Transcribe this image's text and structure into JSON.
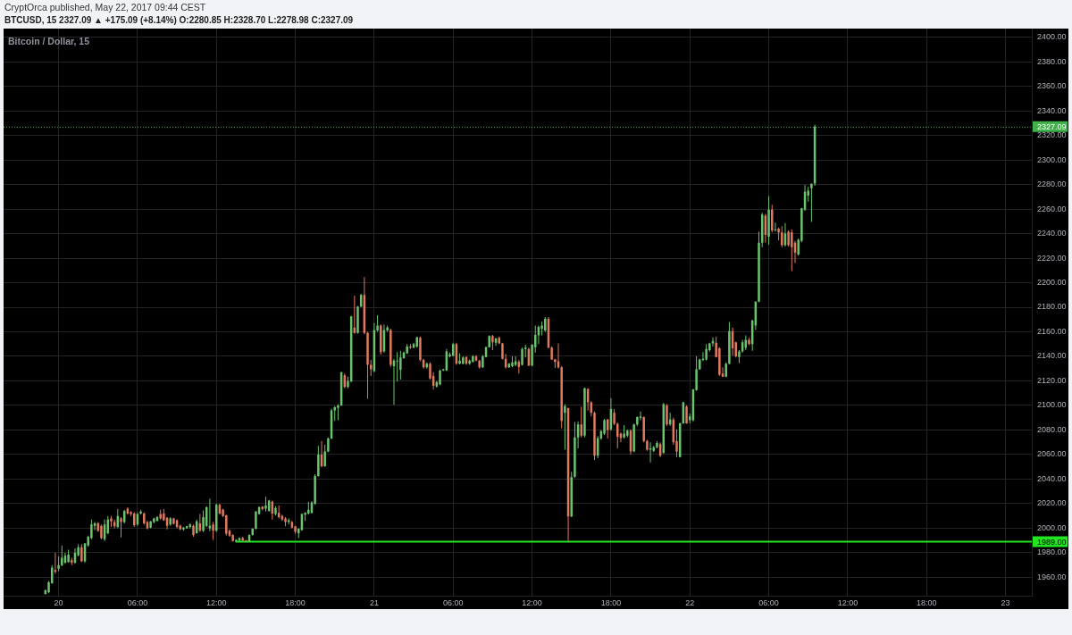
{
  "chart_data": {
    "type": "candlestick",
    "title": "Bitcoin / Dollar, 15",
    "subtitle": "BTCUSD, 15 2327.09 ▲ +175.09 (+8.14%) O:2280.85 H:2328.70 L:2278.98 C:2327.09",
    "annotations": [
      "CryptOrca published, May 22, 2017 09:44 CEST"
    ],
    "x": [
      "2017-05-19T23:00",
      "2017-05-19T23:15",
      "2017-05-19T23:30",
      "2017-05-19T23:45",
      "2017-05-20T00:00",
      "2017-05-20T00:15",
      "2017-05-20T00:30",
      "2017-05-20T00:45",
      "2017-05-20T01:00",
      "2017-05-20T01:15",
      "2017-05-20T01:30",
      "2017-05-20T01:45",
      "2017-05-20T02:00",
      "2017-05-20T02:15",
      "2017-05-20T02:30",
      "2017-05-20T02:45",
      "2017-05-20T03:00",
      "2017-05-20T03:15",
      "2017-05-20T03:30",
      "2017-05-20T03:45",
      "2017-05-20T04:00",
      "2017-05-20T04:15",
      "2017-05-20T04:30",
      "2017-05-20T04:45",
      "2017-05-20T05:00",
      "2017-05-20T05:15",
      "2017-05-20T05:30",
      "2017-05-20T05:45",
      "2017-05-20T06:00",
      "2017-05-20T06:15",
      "2017-05-20T06:30",
      "2017-05-20T06:45",
      "2017-05-20T07:00",
      "2017-05-20T07:15",
      "2017-05-20T07:30",
      "2017-05-20T07:45",
      "2017-05-20T08:00",
      "2017-05-20T08:15",
      "2017-05-20T08:30",
      "2017-05-20T08:45",
      "2017-05-20T09:00",
      "2017-05-20T09:15",
      "2017-05-20T09:30",
      "2017-05-20T09:45",
      "2017-05-20T10:00",
      "2017-05-20T10:15",
      "2017-05-20T10:30",
      "2017-05-20T10:45",
      "2017-05-20T11:00",
      "2017-05-20T11:15",
      "2017-05-20T11:30",
      "2017-05-20T11:45",
      "2017-05-20T12:00",
      "2017-05-20T12:15",
      "2017-05-20T12:30",
      "2017-05-20T12:45",
      "2017-05-20T13:00",
      "2017-05-20T13:15",
      "2017-05-20T13:30",
      "2017-05-20T13:45",
      "2017-05-20T14:00",
      "2017-05-20T14:15",
      "2017-05-20T14:30",
      "2017-05-20T14:45",
      "2017-05-20T15:00",
      "2017-05-20T15:15",
      "2017-05-20T15:30",
      "2017-05-20T15:45",
      "2017-05-20T16:00",
      "2017-05-20T16:15",
      "2017-05-20T16:30",
      "2017-05-20T16:45",
      "2017-05-20T17:00",
      "2017-05-20T17:15",
      "2017-05-20T17:30",
      "2017-05-20T17:45",
      "2017-05-20T18:00",
      "2017-05-20T18:15",
      "2017-05-20T18:30",
      "2017-05-20T18:45",
      "2017-05-20T19:00",
      "2017-05-20T19:15",
      "2017-05-20T19:30",
      "2017-05-20T19:45",
      "2017-05-20T20:00",
      "2017-05-20T20:15",
      "2017-05-20T20:30",
      "2017-05-20T20:45",
      "2017-05-20T21:00",
      "2017-05-20T21:15",
      "2017-05-20T21:30",
      "2017-05-20T21:45",
      "2017-05-20T22:00",
      "2017-05-20T22:15",
      "2017-05-20T22:30",
      "2017-05-20T22:45",
      "2017-05-20T23:00",
      "2017-05-20T23:15",
      "2017-05-20T23:30",
      "2017-05-20T23:45",
      "2017-05-21T00:00",
      "2017-05-21T00:15",
      "2017-05-21T00:30",
      "2017-05-21T00:45",
      "2017-05-21T01:00",
      "2017-05-21T01:15",
      "2017-05-21T01:30",
      "2017-05-21T01:45",
      "2017-05-21T02:00",
      "2017-05-21T02:15",
      "2017-05-21T02:30",
      "2017-05-21T02:45",
      "2017-05-21T03:00",
      "2017-05-21T03:15",
      "2017-05-21T03:30",
      "2017-05-21T03:45",
      "2017-05-21T04:00",
      "2017-05-21T04:15",
      "2017-05-21T04:30",
      "2017-05-21T04:45",
      "2017-05-21T05:00",
      "2017-05-21T05:15",
      "2017-05-21T05:30",
      "2017-05-21T05:45",
      "2017-05-21T06:00",
      "2017-05-21T06:15",
      "2017-05-21T06:30",
      "2017-05-21T06:45",
      "2017-05-21T07:00",
      "2017-05-21T07:15",
      "2017-05-21T07:30",
      "2017-05-21T07:45",
      "2017-05-21T08:00",
      "2017-05-21T08:15",
      "2017-05-21T08:30",
      "2017-05-21T08:45",
      "2017-05-21T09:00",
      "2017-05-21T09:15",
      "2017-05-21T09:30",
      "2017-05-21T09:45",
      "2017-05-21T10:00",
      "2017-05-21T10:15",
      "2017-05-21T10:30",
      "2017-05-21T10:45",
      "2017-05-21T11:00",
      "2017-05-21T11:15",
      "2017-05-21T11:30",
      "2017-05-21T11:45",
      "2017-05-21T12:00",
      "2017-05-21T12:15",
      "2017-05-21T12:30",
      "2017-05-21T12:45",
      "2017-05-21T13:00",
      "2017-05-21T13:15",
      "2017-05-21T13:30",
      "2017-05-21T13:45",
      "2017-05-21T14:00",
      "2017-05-21T14:15",
      "2017-05-21T14:30",
      "2017-05-21T14:45",
      "2017-05-21T15:00",
      "2017-05-21T15:15",
      "2017-05-21T15:30",
      "2017-05-21T15:45",
      "2017-05-21T16:00",
      "2017-05-21T16:15",
      "2017-05-21T16:30",
      "2017-05-21T16:45",
      "2017-05-21T17:00",
      "2017-05-21T17:15",
      "2017-05-21T17:30",
      "2017-05-21T17:45",
      "2017-05-21T18:00",
      "2017-05-21T18:15",
      "2017-05-21T18:30",
      "2017-05-21T18:45",
      "2017-05-21T19:00",
      "2017-05-21T19:15",
      "2017-05-21T19:30",
      "2017-05-21T19:45",
      "2017-05-21T20:00",
      "2017-05-21T20:15",
      "2017-05-21T20:30",
      "2017-05-21T20:45",
      "2017-05-21T21:00",
      "2017-05-21T21:15",
      "2017-05-21T21:30",
      "2017-05-21T21:45",
      "2017-05-21T22:00",
      "2017-05-21T22:15",
      "2017-05-21T22:30",
      "2017-05-21T22:45",
      "2017-05-21T23:00",
      "2017-05-21T23:15",
      "2017-05-21T23:30",
      "2017-05-21T23:45",
      "2017-05-22T00:00",
      "2017-05-22T00:15",
      "2017-05-22T00:30",
      "2017-05-22T00:45",
      "2017-05-22T01:00",
      "2017-05-22T01:15",
      "2017-05-22T01:30",
      "2017-05-22T01:45",
      "2017-05-22T02:00",
      "2017-05-22T02:15",
      "2017-05-22T02:30",
      "2017-05-22T02:45",
      "2017-05-22T03:00",
      "2017-05-22T03:15",
      "2017-05-22T03:30",
      "2017-05-22T03:45",
      "2017-05-22T04:00",
      "2017-05-22T04:15",
      "2017-05-22T04:30",
      "2017-05-22T04:45",
      "2017-05-22T05:00",
      "2017-05-22T05:15",
      "2017-05-22T05:30",
      "2017-05-22T05:45",
      "2017-05-22T06:00",
      "2017-05-22T06:15",
      "2017-05-22T06:30",
      "2017-05-22T06:45",
      "2017-05-22T07:00",
      "2017-05-22T07:15",
      "2017-05-22T07:30",
      "2017-05-22T07:45",
      "2017-05-22T08:00",
      "2017-05-22T08:15",
      "2017-05-22T08:30",
      "2017-05-22T08:45",
      "2017-05-22T09:00",
      "2017-05-22T09:15",
      "2017-05-22T09:30"
    ],
    "ohlc": [
      [
        1946.5,
        1950,
        1946,
        1949.5
      ],
      [
        1948,
        1957,
        1947,
        1956
      ],
      [
        1955,
        1970,
        1955,
        1968
      ],
      [
        1966,
        1980,
        1963,
        1964.5
      ],
      [
        1967,
        1977,
        1965,
        1970
      ],
      [
        1970,
        1986,
        1969,
        1976
      ],
      [
        1972,
        1980,
        1971,
        1977.5
      ],
      [
        1972.5,
        1982.5,
        1972,
        1978.5
      ],
      [
        1974,
        1976,
        1970,
        1972
      ],
      [
        1972,
        1983.5,
        1971,
        1980
      ],
      [
        1978,
        1987,
        1977,
        1984.5
      ],
      [
        1984.5,
        1987,
        1972.5,
        1973
      ],
      [
        1973,
        1988,
        1972,
        1987.5
      ],
      [
        1986,
        1994,
        1985,
        1993
      ],
      [
        1992,
        2007,
        1991,
        2003
      ],
      [
        2002,
        2005,
        1998.5,
        2004
      ],
      [
        2004,
        2005,
        1997,
        1998
      ],
      [
        2002,
        2003,
        1991,
        1992
      ],
      [
        1991,
        2007,
        1989.5,
        2003
      ],
      [
        1996,
        2010,
        1995,
        2007
      ],
      [
        2008,
        2010,
        2001,
        2005.5
      ],
      [
        2005,
        2007,
        2000,
        2001.5
      ],
      [
        2001,
        2015.5,
        2000,
        2010
      ],
      [
        2008,
        2009,
        1992.5,
        2005
      ],
      [
        2005,
        2015,
        2004,
        2014
      ],
      [
        2016,
        2017,
        2011,
        2012
      ],
      [
        2013,
        2014,
        2010,
        2011.5
      ],
      [
        2012,
        2013,
        2001,
        2002.5
      ],
      [
        2003,
        2012.5,
        2002,
        2011.5
      ],
      [
        2012,
        2015,
        2011,
        2013.5
      ],
      [
        2012,
        2013,
        2003,
        2004
      ],
      [
        2005,
        2006,
        1999,
        2000
      ],
      [
        2000.5,
        2006,
        2000,
        2005.5
      ],
      [
        2005,
        2008.5,
        2004,
        2008
      ],
      [
        2006,
        2010,
        2005.5,
        2009
      ],
      [
        2011.5,
        2015,
        2007,
        2008
      ],
      [
        2012,
        2015.5,
        2006,
        2006.5
      ],
      [
        2008.5,
        2009,
        1999,
        2002
      ],
      [
        2003,
        2009,
        2002,
        2008
      ],
      [
        2008,
        2008.5,
        2003,
        2003.5
      ],
      [
        2006.5,
        2007,
        2000,
        2001
      ],
      [
        2002,
        2003,
        1998.5,
        1999
      ],
      [
        1999,
        2001,
        1998,
        2000.5
      ],
      [
        2000,
        2002,
        1999.5,
        2001.5
      ],
      [
        2001,
        2004,
        2000,
        2003
      ],
      [
        2002,
        2003,
        1993,
        1994.5
      ],
      [
        1996,
        2007,
        1995.5,
        2005.5
      ],
      [
        2004,
        2011.5,
        1997,
        1998
      ],
      [
        1998,
        2014.5,
        1997,
        2009
      ],
      [
        2002,
        2018,
        2001,
        2017
      ],
      [
        2000,
        2024,
        1997.5,
        2002
      ],
      [
        2003,
        2005,
        1990.5,
        1998
      ],
      [
        1998,
        2020,
        1997,
        2019
      ],
      [
        2019,
        2020,
        2011,
        2012
      ],
      [
        2015,
        2016,
        2009,
        2010
      ],
      [
        2010.5,
        2011,
        1994,
        1995.5
      ],
      [
        1998,
        1999,
        1993,
        1994
      ],
      [
        1994.5,
        1995,
        1989,
        1989.5
      ],
      [
        1989.5,
        1991,
        1989,
        1990.5
      ],
      [
        1990,
        1992.5,
        1989.5,
        1992
      ],
      [
        1992,
        1993,
        1989.5,
        1990
      ],
      [
        1990,
        1990.5,
        1989,
        1989.5
      ],
      [
        1989,
        1995,
        1989,
        1994.5
      ],
      [
        1994.5,
        2000,
        1994,
        1999.5
      ],
      [
        1999.5,
        2014,
        1999,
        2013.5
      ],
      [
        2011.5,
        2018,
        2011,
        2017
      ],
      [
        2017.5,
        2018,
        2014.5,
        2015.5
      ],
      [
        2016,
        2025.5,
        2013.5,
        2018.5
      ],
      [
        2014,
        2023,
        2013.5,
        2022.5
      ],
      [
        2021.5,
        2022.5,
        2007,
        2012
      ],
      [
        2011.5,
        2018,
        2010.5,
        2016.5
      ],
      [
        2012.5,
        2018.5,
        2008,
        2009
      ],
      [
        2010,
        2011,
        2006,
        2007
      ],
      [
        2008,
        2009,
        2001.5,
        2005
      ],
      [
        2005,
        2008,
        2003,
        2006.5
      ],
      [
        2005,
        2006,
        2000,
        2000.5
      ],
      [
        2001.5,
        2002,
        1995.5,
        1997
      ],
      [
        1996,
        2000,
        1992,
        1999.5
      ],
      [
        1998.5,
        2012,
        1998,
        2011.5
      ],
      [
        2011,
        2013,
        2006,
        2012.5
      ],
      [
        2012,
        2021.5,
        2011,
        2015
      ],
      [
        2012.5,
        2022,
        2012,
        2021
      ],
      [
        2020,
        2044,
        2019,
        2042.5
      ],
      [
        2042.5,
        2067,
        2042,
        2060
      ],
      [
        2060,
        2071,
        2049.5,
        2050.5
      ],
      [
        2050.5,
        2068,
        2050,
        2062.5
      ],
      [
        2062.5,
        2074,
        2062,
        2073
      ],
      [
        2073,
        2097.5,
        2072.5,
        2096
      ],
      [
        2096,
        2099.5,
        2087.5,
        2098.5
      ],
      [
        2098,
        2101,
        2088,
        2100
      ],
      [
        2100,
        2127.5,
        2099.5,
        2127
      ],
      [
        2124.5,
        2126,
        2114,
        2115
      ],
      [
        2115,
        2123.5,
        2114,
        2120
      ],
      [
        2119.5,
        2173,
        2119,
        2172.5
      ],
      [
        2163.5,
        2189.5,
        2158.5,
        2159
      ],
      [
        2159,
        2181,
        2158.5,
        2180.5
      ],
      [
        2180.5,
        2191,
        2180,
        2190
      ],
      [
        2190,
        2204.5,
        2158,
        2159
      ],
      [
        2159,
        2160,
        2105.5,
        2133
      ],
      [
        2133,
        2137,
        2124,
        2129.5
      ],
      [
        2128,
        2167,
        2127,
        2161.5
      ],
      [
        2161,
        2173.5,
        2160,
        2165
      ],
      [
        2165,
        2166,
        2141.5,
        2143.5
      ],
      [
        2144,
        2166,
        2143,
        2161.5
      ],
      [
        2161,
        2165,
        2160,
        2163.5
      ],
      [
        2161.5,
        2162.5,
        2131.5,
        2133
      ],
      [
        2132,
        2138,
        2100.5,
        2136.5
      ],
      [
        2136,
        2143.5,
        2119.5,
        2136.5
      ],
      [
        2129,
        2144.5,
        2121,
        2139
      ],
      [
        2138.5,
        2144,
        2138,
        2143
      ],
      [
        2142.5,
        2150,
        2142,
        2148
      ],
      [
        2148,
        2150,
        2146,
        2147
      ],
      [
        2147,
        2151,
        2146.5,
        2150
      ],
      [
        2148,
        2156,
        2147,
        2155.5
      ],
      [
        2155,
        2156,
        2136,
        2137
      ],
      [
        2137,
        2138,
        2130,
        2131
      ],
      [
        2131,
        2135,
        2130,
        2134
      ],
      [
        2134,
        2135,
        2121,
        2122
      ],
      [
        2124,
        2127,
        2113,
        2116
      ],
      [
        2115.5,
        2120,
        2114.5,
        2119
      ],
      [
        2117,
        2129,
        2116.5,
        2128.5
      ],
      [
        2128.5,
        2130,
        2128,
        2129.5
      ],
      [
        2128.5,
        2146,
        2128,
        2144
      ],
      [
        2140,
        2143,
        2139,
        2141.5
      ],
      [
        2140.5,
        2151,
        2140,
        2150
      ],
      [
        2150,
        2151,
        2133,
        2134
      ],
      [
        2134,
        2142.5,
        2133.5,
        2136.5
      ],
      [
        2134,
        2140,
        2133.5,
        2139
      ],
      [
        2139.5,
        2140,
        2133,
        2134
      ],
      [
        2134,
        2137.5,
        2133,
        2136.5
      ],
      [
        2135.5,
        2141,
        2135,
        2140
      ],
      [
        2140,
        2141,
        2136,
        2136.5
      ],
      [
        2136.5,
        2137,
        2130,
        2131
      ],
      [
        2131,
        2141,
        2130.5,
        2140
      ],
      [
        2139.5,
        2148,
        2139,
        2147.5
      ],
      [
        2147.5,
        2157,
        2147,
        2156.5
      ],
      [
        2156.5,
        2157.5,
        2145,
        2151.5
      ],
      [
        2151,
        2155,
        2148.5,
        2154.5
      ],
      [
        2155,
        2156,
        2150,
        2150.5
      ],
      [
        2150.5,
        2151,
        2137.5,
        2138
      ],
      [
        2138,
        2142,
        2130,
        2131
      ],
      [
        2131,
        2134.5,
        2130.5,
        2134
      ],
      [
        2132,
        2140,
        2131,
        2135
      ],
      [
        2133,
        2140,
        2132,
        2136
      ],
      [
        2135.5,
        2137,
        2126,
        2131.5
      ],
      [
        2133,
        2147,
        2132.5,
        2146
      ],
      [
        2146,
        2149.5,
        2139,
        2147
      ],
      [
        2146,
        2147,
        2132,
        2132.5
      ],
      [
        2132.5,
        2150,
        2132,
        2149.5
      ],
      [
        2147.5,
        2165,
        2143,
        2157.5
      ],
      [
        2157,
        2165,
        2150,
        2164
      ],
      [
        2162.5,
        2168.5,
        2157,
        2165
      ],
      [
        2161,
        2172,
        2160,
        2170.5
      ],
      [
        2170.5,
        2172,
        2146.5,
        2147
      ],
      [
        2147,
        2148,
        2137,
        2137.5
      ],
      [
        2137.5,
        2138,
        2130.5,
        2135.5
      ],
      [
        2136,
        2150.5,
        2130,
        2131
      ],
      [
        2131,
        2132,
        2081.5,
        2087.5
      ],
      [
        2094,
        2101,
        2064,
        2099.5
      ],
      [
        2098,
        2098,
        1989.5,
        2009.5
      ],
      [
        2009.5,
        2046,
        2009,
        2041.5
      ],
      [
        2042,
        2086.5,
        2041,
        2074
      ],
      [
        2074,
        2087,
        2065,
        2084.5
      ],
      [
        2084.5,
        2099,
        2074,
        2075.5
      ],
      [
        2075.5,
        2114.5,
        2074,
        2114
      ],
      [
        2113.5,
        2114,
        2096,
        2102.5
      ],
      [
        2102.5,
        2103.5,
        2091,
        2094
      ],
      [
        2094,
        2095,
        2055.5,
        2059
      ],
      [
        2059,
        2075,
        2057,
        2073.5
      ],
      [
        2073,
        2080,
        2072,
        2079
      ],
      [
        2077,
        2089,
        2076,
        2088
      ],
      [
        2088.5,
        2089,
        2073,
        2080
      ],
      [
        2080.5,
        2106,
        2079.5,
        2097
      ],
      [
        2094,
        2097,
        2084,
        2085
      ],
      [
        2085,
        2086,
        2065,
        2074.5
      ],
      [
        2077,
        2078,
        2070,
        2073.5
      ],
      [
        2074,
        2084,
        2073,
        2077
      ],
      [
        2075.5,
        2080.5,
        2074,
        2079.5
      ],
      [
        2079.5,
        2080.5,
        2060,
        2062.5
      ],
      [
        2062.5,
        2085,
        2062,
        2084.5
      ],
      [
        2084.5,
        2091,
        2083,
        2090.5
      ],
      [
        2090,
        2095,
        2088,
        2091
      ],
      [
        2090.5,
        2091,
        2070,
        2071
      ],
      [
        2071,
        2072,
        2063,
        2064
      ],
      [
        2064,
        2070,
        2053.5,
        2065
      ],
      [
        2063,
        2067,
        2062,
        2066
      ],
      [
        2066,
        2071,
        2065,
        2069.5
      ],
      [
        2068.5,
        2070,
        2058,
        2059
      ],
      [
        2061.5,
        2102,
        2060.5,
        2101
      ],
      [
        2100,
        2101,
        2083.5,
        2084.5
      ],
      [
        2084.5,
        2094,
        2083.5,
        2088.5
      ],
      [
        2088.5,
        2090,
        2068,
        2070
      ],
      [
        2071,
        2080.5,
        2058,
        2062.5
      ],
      [
        2058,
        2086,
        2057.5,
        2085.5
      ],
      [
        2085.5,
        2103,
        2085,
        2102.5
      ],
      [
        2099,
        2100,
        2085,
        2085.5
      ],
      [
        2088,
        2093.5,
        2085.5,
        2091
      ],
      [
        2088,
        2113.5,
        2087,
        2113
      ],
      [
        2112.5,
        2140,
        2112,
        2129.5
      ],
      [
        2129.5,
        2138,
        2129,
        2137.5
      ],
      [
        2137,
        2143.5,
        2136,
        2138
      ],
      [
        2137.5,
        2150,
        2136.5,
        2146
      ],
      [
        2145,
        2151,
        2144,
        2150.5
      ],
      [
        2150.5,
        2155.5,
        2148,
        2152.5
      ],
      [
        2151,
        2156,
        2139,
        2139.5
      ],
      [
        2146.5,
        2147.5,
        2124,
        2125
      ],
      [
        2126,
        2131,
        2123,
        2123.5
      ],
      [
        2123.5,
        2135,
        2123,
        2134
      ],
      [
        2134,
        2168,
        2133.5,
        2160.5
      ],
      [
        2160.5,
        2163.5,
        2140.5,
        2146.5
      ],
      [
        2151.5,
        2152,
        2139,
        2140
      ],
      [
        2139.5,
        2145,
        2134.5,
        2144
      ],
      [
        2144,
        2153.5,
        2143,
        2151.5
      ],
      [
        2147,
        2157,
        2145,
        2153.5
      ],
      [
        2153.5,
        2155,
        2149,
        2150
      ],
      [
        2150,
        2170,
        2144.5,
        2169
      ],
      [
        2165,
        2185,
        2161.5,
        2184.5
      ],
      [
        2184.5,
        2241.5,
        2184,
        2232.5
      ],
      [
        2232.5,
        2257,
        2229,
        2255.5
      ],
      [
        2254.5,
        2256,
        2232.5,
        2239
      ],
      [
        2237.5,
        2270.5,
        2231,
        2259.5
      ],
      [
        2259.5,
        2263.5,
        2241,
        2242.5
      ],
      [
        2243,
        2249,
        2241.5,
        2243.5
      ],
      [
        2244,
        2245,
        2234.5,
        2241
      ],
      [
        2241,
        2246,
        2229,
        2230.5
      ],
      [
        2230.5,
        2248.5,
        2229.5,
        2240
      ],
      [
        2241.5,
        2242.5,
        2229.5,
        2230.5
      ],
      [
        2241,
        2243.5,
        2209.5,
        2229
      ],
      [
        2232.5,
        2234,
        2216,
        2224.5
      ],
      [
        2223,
        2236,
        2222,
        2235
      ],
      [
        2234,
        2261,
        2233,
        2260.5
      ],
      [
        2259.5,
        2279.5,
        2258.5,
        2274
      ],
      [
        2271,
        2278,
        2266,
        2275
      ],
      [
        2277,
        2281,
        2249.5,
        2280.5
      ],
      [
        2280.85,
        2328.7,
        2278.98,
        2327.09
      ]
    ],
    "colors": [
      "#6bc46d",
      "#6bc46d",
      "#6bc46d",
      "#e07a5e",
      "#6bc46d",
      "#6bc46d",
      "#6bc46d",
      "#6bc46d",
      "#e07a5e",
      "#6bc46d",
      "#6bc46d",
      "#e07a5e",
      "#6bc46d",
      "#6bc46d",
      "#6bc46d",
      "#6bc46d",
      "#e07a5e",
      "#e07a5e",
      "#6bc46d",
      "#6bc46d",
      "#e07a5e",
      "#e07a5e",
      "#6bc46d",
      "#e07a5e",
      "#6bc46d",
      "#e07a5e",
      "#e07a5e",
      "#e07a5e",
      "#6bc46d",
      "#6bc46d",
      "#e07a5e",
      "#e07a5e",
      "#6bc46d",
      "#6bc46d",
      "#6bc46d",
      "#e07a5e",
      "#e07a5e",
      "#e07a5e",
      "#6bc46d",
      "#e07a5e",
      "#e07a5e",
      "#e07a5e",
      "#6bc46d",
      "#6bc46d",
      "#6bc46d",
      "#e07a5e",
      "#6bc46d",
      "#e07a5e",
      "#6bc46d",
      "#6bc46d",
      "#6bc46d",
      "#e07a5e",
      "#6bc46d",
      "#e07a5e",
      "#e07a5e",
      "#e07a5e",
      "#e07a5e",
      "#e07a5e",
      "#6bc46d",
      "#6bc46d",
      "#e07a5e",
      "#e07a5e",
      "#6bc46d",
      "#6bc46d",
      "#6bc46d",
      "#6bc46d",
      "#e07a5e",
      "#6bc46d",
      "#6bc46d",
      "#e07a5e",
      "#6bc46d",
      "#e07a5e",
      "#e07a5e",
      "#e07a5e",
      "#6bc46d",
      "#e07a5e",
      "#e07a5e",
      "#6bc46d",
      "#6bc46d",
      "#6bc46d",
      "#6bc46d",
      "#6bc46d",
      "#6bc46d",
      "#6bc46d",
      "#e07a5e",
      "#6bc46d",
      "#6bc46d",
      "#6bc46d",
      "#6bc46d",
      "#6bc46d",
      "#6bc46d",
      "#e07a5e",
      "#6bc46d",
      "#6bc46d",
      "#e07a5e",
      "#6bc46d",
      "#6bc46d",
      "#e07a5e",
      "#e07a5e",
      "#e07a5e",
      "#6bc46d",
      "#6bc46d",
      "#e07a5e",
      "#6bc46d",
      "#6bc46d",
      "#e07a5e",
      "#6bc46d",
      "#6bc46d",
      "#6bc46d",
      "#6bc46d",
      "#6bc46d",
      "#e07a5e",
      "#6bc46d",
      "#6bc46d",
      "#e07a5e",
      "#e07a5e",
      "#6bc46d",
      "#e07a5e",
      "#e07a5e",
      "#6bc46d",
      "#6bc46d",
      "#6bc46d",
      "#6bc46d",
      "#6bc46d",
      "#6bc46d",
      "#e07a5e",
      "#6bc46d",
      "#6bc46d",
      "#e07a5e",
      "#6bc46d",
      "#6bc46d",
      "#e07a5e",
      "#e07a5e",
      "#6bc46d",
      "#6bc46d",
      "#6bc46d",
      "#e07a5e",
      "#6bc46d",
      "#e07a5e",
      "#e07a5e",
      "#e07a5e",
      "#6bc46d",
      "#6bc46d",
      "#6bc46d",
      "#e07a5e",
      "#6bc46d",
      "#6bc46d",
      "#e07a5e",
      "#6bc46d",
      "#6bc46d",
      "#6bc46d",
      "#6bc46d",
      "#6bc46d",
      "#e07a5e",
      "#e07a5e",
      "#e07a5e",
      "#e07a5e",
      "#e07a5e",
      "#6bc46d",
      "#e07a5e",
      "#6bc46d",
      "#6bc46d",
      "#6bc46d",
      "#e07a5e",
      "#6bc46d",
      "#e07a5e",
      "#e07a5e",
      "#e07a5e",
      "#6bc46d",
      "#6bc46d",
      "#6bc46d",
      "#e07a5e",
      "#6bc46d",
      "#e07a5e",
      "#e07a5e",
      "#e07a5e",
      "#6bc46d",
      "#6bc46d",
      "#e07a5e",
      "#6bc46d",
      "#6bc46d",
      "#6bc46d",
      "#e07a5e",
      "#e07a5e",
      "#6bc46d",
      "#6bc46d",
      "#6bc46d",
      "#e07a5e",
      "#6bc46d",
      "#e07a5e",
      "#6bc46d",
      "#e07a5e",
      "#e07a5e",
      "#6bc46d",
      "#6bc46d",
      "#e07a5e",
      "#6bc46d",
      "#6bc46d",
      "#6bc46d",
      "#6bc46d",
      "#6bc46d",
      "#6bc46d",
      "#6bc46d",
      "#6bc46d",
      "#e07a5e",
      "#e07a5e",
      "#e07a5e",
      "#6bc46d",
      "#6bc46d",
      "#e07a5e",
      "#e07a5e",
      "#6bc46d",
      "#6bc46d",
      "#6bc46d",
      "#e07a5e",
      "#6bc46d",
      "#6bc46d",
      "#6bc46d",
      "#6bc46d",
      "#e07a5e",
      "#6bc46d",
      "#e07a5e",
      "#6bc46d",
      "#e07a5e",
      "#e07a5e",
      "#6bc46d",
      "#e07a5e",
      "#e07a5e",
      "#e07a5e",
      "#6bc46d",
      "#6bc46d",
      "#6bc46d",
      "#6bc46d",
      "#6bc46d",
      "#6bc46d"
    ],
    "series": [
      {
        "type": "line",
        "color": "#22e622",
        "x": [
          "2017-05-20T13:30",
          "2017-05-23T02:00"
        ],
        "values": [
          1989,
          1989
        ],
        "value_labels": [
          null,
          "1989.00"
        ]
      }
    ],
    "ref_lines": [
      {
        "axis": "y",
        "value": 2327.09,
        "label": "2327.09",
        "color": "#3fb34a",
        "line_style": "dotted"
      }
    ],
    "xlim": [
      "2017-05-19T19:49",
      "2017-05-23T02:00"
    ],
    "xticks": [
      {
        "value": "2017-05-20T00:00",
        "label": "20"
      },
      {
        "value": "2017-05-20T06:00",
        "label": "06:00"
      },
      {
        "value": "2017-05-20T12:00",
        "label": "12:00"
      },
      {
        "value": "2017-05-20T18:00",
        "label": "18:00"
      },
      {
        "value": "2017-05-21T00:00",
        "label": "21"
      },
      {
        "value": "2017-05-21T06:00",
        "label": "06:00"
      },
      {
        "value": "2017-05-21T12:00",
        "label": "12:00"
      },
      {
        "value": "2017-05-21T18:00",
        "label": "18:00"
      },
      {
        "value": "2017-05-22T00:00",
        "label": "22"
      },
      {
        "value": "2017-05-22T06:00",
        "label": "06:00"
      },
      {
        "value": "2017-05-22T12:00",
        "label": "12:00"
      },
      {
        "value": "2017-05-22T18:00",
        "label": "18:00"
      },
      {
        "value": "2017-05-23T00:00",
        "label": "23"
      }
    ],
    "ylim": [
      1945,
      2407
    ],
    "yticks": [
      {
        "value": 1960,
        "label": "1960.00"
      },
      {
        "value": 1980,
        "label": "1980.00"
      },
      {
        "value": 2000,
        "label": "2000.00"
      },
      {
        "value": 2020,
        "label": "2020.00"
      },
      {
        "value": 2040,
        "label": "2040.00"
      },
      {
        "value": 2060,
        "label": "2060.00"
      },
      {
        "value": 2080,
        "label": "2080.00"
      },
      {
        "value": 2100,
        "label": "2100.00"
      },
      {
        "value": 2120,
        "label": "2120.00"
      },
      {
        "value": 2140,
        "label": "2140.00"
      },
      {
        "value": 2160,
        "label": "2160.00"
      },
      {
        "value": 2180,
        "label": "2180.00"
      },
      {
        "value": 2200,
        "label": "2200.00"
      },
      {
        "value": 2220,
        "label": "2220.00"
      },
      {
        "value": 2240,
        "label": "2240.00"
      },
      {
        "value": 2260,
        "label": "2260.00"
      },
      {
        "value": 2280,
        "label": "2280.00"
      },
      {
        "value": 2300,
        "label": "2300.00"
      },
      {
        "value": 2320,
        "label": "2320.00"
      },
      {
        "value": 2340,
        "label": "2340.00"
      },
      {
        "value": 2360,
        "label": "2360.00"
      },
      {
        "value": 2380,
        "label": "2380.00"
      },
      {
        "value": 2400,
        "label": "2400.00"
      }
    ],
    "grid": true
  }
}
